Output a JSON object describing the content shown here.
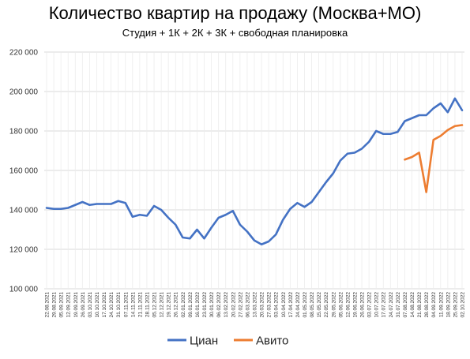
{
  "chart_data": {
    "type": "line",
    "title": "Количество квартир на продажу (Москва+МО)",
    "subtitle": "Студия + 1К + 2К + 3К + свободная планировка",
    "xlabel": "",
    "ylabel": "",
    "ylim": [
      100000,
      220000
    ],
    "yticks": [
      "100 000",
      "120 000",
      "140 000",
      "160 000",
      "180 000",
      "200 000",
      "220 000"
    ],
    "grid": true,
    "legend_position": "bottom",
    "categories": [
      "22.08.2021",
      "29.08.2021",
      "05.09.2021",
      "12.09.2021",
      "19.09.2021",
      "26.09.2021",
      "03.10.2021",
      "10.10.2021",
      "17.10.2021",
      "24.10.2021",
      "31.10.2021",
      "07.11.2021",
      "14.11.2021",
      "21.11.2021",
      "28.11.2021",
      "05.12.2021",
      "12.12.2021",
      "19.12.2021",
      "26.12.2021",
      "02.01.2022",
      "09.01.2022",
      "16.01.2022",
      "23.01.2022",
      "30.01.2022",
      "06.02.2022",
      "13.02.2022",
      "20.02.2022",
      "27.02.2022",
      "06.03.2022",
      "13.03.2022",
      "20.03.2022",
      "27.03.2022",
      "03.04.2022",
      "10.04.2022",
      "17.04.2022",
      "24.04.2022",
      "01.05.2022",
      "08.05.2022",
      "15.05.2022",
      "22.05.2022",
      "29.05.2022",
      "05.06.2022",
      "12.06.2022",
      "19.06.2022",
      "26.06.2022",
      "03.07.2022",
      "10.07.2022",
      "17.07.2022",
      "24.07.2022",
      "31.07.2022",
      "07.08.2022",
      "14.08.2022",
      "21.08.2022",
      "28.08.2022",
      "04.09.2022",
      "11.09.2022",
      "18.09.2022",
      "25.09.2022",
      "02.10.2022"
    ],
    "series": [
      {
        "name": "Циан",
        "color": "#4472C4",
        "values": [
          141000,
          140500,
          140500,
          141000,
          142500,
          144000,
          142500,
          143000,
          143000,
          143000,
          144500,
          143500,
          136500,
          137500,
          137000,
          142000,
          140000,
          136000,
          132500,
          126000,
          125500,
          130000,
          125500,
          131000,
          136000,
          137500,
          139500,
          132500,
          129000,
          124500,
          122500,
          124000,
          127500,
          135000,
          140500,
          143500,
          141500,
          144000,
          149000,
          154000,
          158500,
          165000,
          168500,
          169000,
          171000,
          174500,
          180000,
          178500,
          178500,
          179500,
          185000,
          186500,
          188000,
          188000,
          191500,
          194000,
          189500,
          196500,
          190500
        ]
      },
      {
        "name": "Авито",
        "color": "#ED7D31",
        "values": [
          null,
          null,
          null,
          null,
          null,
          null,
          null,
          null,
          null,
          null,
          null,
          null,
          null,
          null,
          null,
          null,
          null,
          null,
          null,
          null,
          null,
          null,
          null,
          null,
          null,
          null,
          null,
          null,
          null,
          null,
          null,
          null,
          null,
          null,
          null,
          null,
          null,
          null,
          null,
          null,
          null,
          null,
          null,
          null,
          null,
          null,
          null,
          null,
          null,
          null,
          165500,
          166800,
          169000,
          149000,
          175500,
          177500,
          180500,
          182500,
          183000
        ]
      }
    ]
  }
}
